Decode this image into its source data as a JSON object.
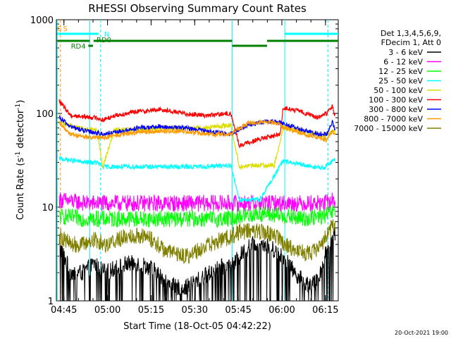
{
  "chart_data": {
    "type": "line",
    "title": "RHESSI Observing Summary Count Rates",
    "xlabel": "Start Time (18-Oct-05 04:42:22)",
    "ylabel_main": "Count Rate (s",
    "ylabel_sup1": "-1",
    "ylabel_mid": " detector",
    "ylabel_sup2": "-1",
    "ylabel_end": ")",
    "y_scale": "log",
    "ylim": [
      1,
      1000
    ],
    "xlim_minutes": [
      0,
      97
    ],
    "x_ticks": [
      {
        "t": 2.6,
        "label": "04:45"
      },
      {
        "t": 17.6,
        "label": "05:00"
      },
      {
        "t": 32.6,
        "label": "05:15"
      },
      {
        "t": 47.6,
        "label": "05:30"
      },
      {
        "t": 62.6,
        "label": "05:45"
      },
      {
        "t": 77.6,
        "label": "06:00"
      },
      {
        "t": 92.6,
        "label": "06:15"
      }
    ],
    "y_ticks": [
      {
        "v": 1,
        "label": "1"
      },
      {
        "v": 10,
        "label": "10"
      },
      {
        "v": 100,
        "label": "100"
      },
      {
        "v": 1000,
        "label": "1000"
      }
    ],
    "legend_header": [
      "Det 1,3,4,5,6,9,",
      "FDecim 1, Att 0"
    ],
    "legend_placement": "right",
    "series": [
      {
        "name": "3 - 6 keV",
        "color": "#000000",
        "t": [
          1,
          5,
          9,
          13,
          17,
          21,
          25,
          29,
          33,
          37,
          41,
          45,
          49,
          53,
          57,
          61,
          63,
          67,
          71,
          75,
          78,
          82,
          86,
          90,
          93,
          96
        ],
        "v": [
          4,
          2,
          2,
          2.5,
          2,
          2.3,
          2.5,
          2.5,
          2.2,
          1.7,
          1.4,
          1.4,
          1.7,
          2,
          2.3,
          2.4,
          3,
          4,
          4.2,
          3.5,
          3,
          2,
          1.5,
          1.6,
          3.5,
          5.5
        ]
      },
      {
        "name": "6 - 12 keV",
        "color": "#ff00ff",
        "t": [
          1,
          10,
          20,
          30,
          40,
          50,
          60,
          63,
          70,
          78,
          85,
          92,
          96
        ],
        "v": [
          12,
          11,
          11,
          11,
          11,
          11,
          11,
          11,
          11,
          11,
          11,
          11,
          12
        ]
      },
      {
        "name": "12 - 25 keV",
        "color": "#00ff00",
        "t": [
          1,
          10,
          20,
          30,
          40,
          50,
          60,
          63,
          70,
          78,
          85,
          92,
          96
        ],
        "v": [
          8,
          7.5,
          7.5,
          7.5,
          7.5,
          7.5,
          7.5,
          8,
          8.5,
          8,
          7.5,
          8,
          9
        ]
      },
      {
        "name": "25 - 50 keV",
        "color": "#00ffff",
        "t": [
          1,
          10,
          14,
          16,
          20,
          30,
          40,
          50,
          60,
          63,
          70,
          78,
          85,
          92,
          96
        ],
        "v": [
          33,
          30,
          30,
          27,
          27,
          27,
          27,
          27,
          28,
          12,
          12,
          31,
          28,
          26,
          33
        ]
      },
      {
        "name": "50 - 100 keV",
        "color": "#dddd00",
        "t": [
          1,
          10,
          14,
          16,
          20,
          30,
          40,
          50,
          60,
          63,
          70,
          75,
          78,
          85,
          92,
          96
        ],
        "v": [
          80,
          67,
          67,
          27,
          67,
          68,
          70,
          70,
          75,
          27,
          28,
          28,
          70,
          65,
          58,
          65
        ]
      },
      {
        "name": "100 - 300 keV",
        "color": "#ff0000",
        "t": [
          1,
          5,
          10,
          14,
          16,
          20,
          28,
          36,
          44,
          52,
          60,
          63,
          67,
          72,
          77,
          78,
          84,
          90,
          93,
          95,
          96
        ],
        "v": [
          135,
          95,
          92,
          90,
          85,
          95,
          105,
          110,
          100,
          95,
          100,
          45,
          50,
          55,
          60,
          115,
          105,
          90,
          100,
          120,
          90
        ]
      },
      {
        "name": "300 - 800 keV",
        "color": "#0000ff",
        "t": [
          1,
          5,
          10,
          14,
          16,
          20,
          28,
          36,
          44,
          52,
          60,
          63,
          66,
          70,
          74,
          77,
          78,
          84,
          90,
          93,
          95,
          96
        ],
        "v": [
          90,
          72,
          65,
          62,
          60,
          62,
          70,
          72,
          70,
          65,
          60,
          68,
          75,
          80,
          82,
          80,
          78,
          68,
          60,
          60,
          80,
          65
        ]
      },
      {
        "name": "800 - 7000 keV",
        "color": "#ff9900",
        "t": [
          1,
          5,
          10,
          14,
          16,
          20,
          28,
          36,
          44,
          52,
          60,
          63,
          66,
          70,
          74,
          77,
          78,
          84,
          90,
          93,
          95,
          96
        ],
        "v": [
          78,
          60,
          56,
          55,
          55,
          58,
          63,
          65,
          64,
          60,
          60,
          70,
          78,
          82,
          80,
          76,
          72,
          62,
          55,
          52,
          65,
          58
        ]
      },
      {
        "name": "7000 - 15000 keV",
        "color": "#808000",
        "t": [
          1,
          5,
          9,
          13,
          17,
          21,
          25,
          29,
          33,
          37,
          41,
          45,
          49,
          53,
          57,
          61,
          63,
          67,
          71,
          75,
          78,
          82,
          86,
          90,
          93,
          96
        ],
        "v": [
          5,
          4,
          4,
          4.5,
          4,
          4.5,
          5,
          5,
          4.5,
          3.5,
          3.2,
          3,
          3.5,
          4,
          4.5,
          5,
          5.5,
          5.5,
          5.5,
          5,
          4.2,
          3.5,
          3.2,
          3.5,
          5,
          7
        ]
      }
    ],
    "vlines": [
      {
        "t": 0.3,
        "color": "#00ffff",
        "dashed": false
      },
      {
        "t": 1.4,
        "color": "#ff9900",
        "dashed": true
      },
      {
        "t": 11.5,
        "color": "#00ffff",
        "dashed": false
      },
      {
        "t": 15.2,
        "color": "#00ffff",
        "dashed": true
      },
      {
        "t": 60.5,
        "color": "#00ffff",
        "dashed": false
      },
      {
        "t": 78.6,
        "color": "#00ffff",
        "dashed": false
      },
      {
        "t": 93.5,
        "color": "#00ffff",
        "dashed": true
      }
    ],
    "state_bars": [
      {
        "t0": 0.3,
        "t1": 14.5,
        "row": "top",
        "color": "#00ffff"
      },
      {
        "t0": 78.6,
        "t1": 97,
        "row": "top",
        "color": "#00ffff"
      },
      {
        "t0": 0.3,
        "t1": 11.5,
        "row": "mid",
        "color": "#008000"
      },
      {
        "t0": 12.8,
        "t1": 60.5,
        "row": "mid",
        "color": "#008000"
      },
      {
        "t0": 60.5,
        "t1": 72.5,
        "row": "low",
        "color": "#008000"
      },
      {
        "t0": 72.5,
        "t1": 97,
        "row": "mid",
        "color": "#008000"
      },
      {
        "t0": 11,
        "t1": 12.6,
        "row": "rd4",
        "color": "#008000"
      }
    ],
    "annotations": [
      {
        "text": "S",
        "t": 0.3,
        "row": "top-label",
        "color": "#ff9900"
      },
      {
        "text": "S",
        "t": 2.3,
        "row": "top-label",
        "color": "#ff9900"
      },
      {
        "text": "N",
        "t": 16.5,
        "row": "n-label",
        "color": "#00ffff"
      },
      {
        "text": "RD0",
        "t": 13.8,
        "row": "rd0-label",
        "color": "#008000"
      },
      {
        "text": "RD4",
        "t": 5.0,
        "row": "rd4-label",
        "color": "#008000"
      }
    ]
  },
  "footer": {
    "timestamp": "20-Oct-2021 19:00"
  }
}
